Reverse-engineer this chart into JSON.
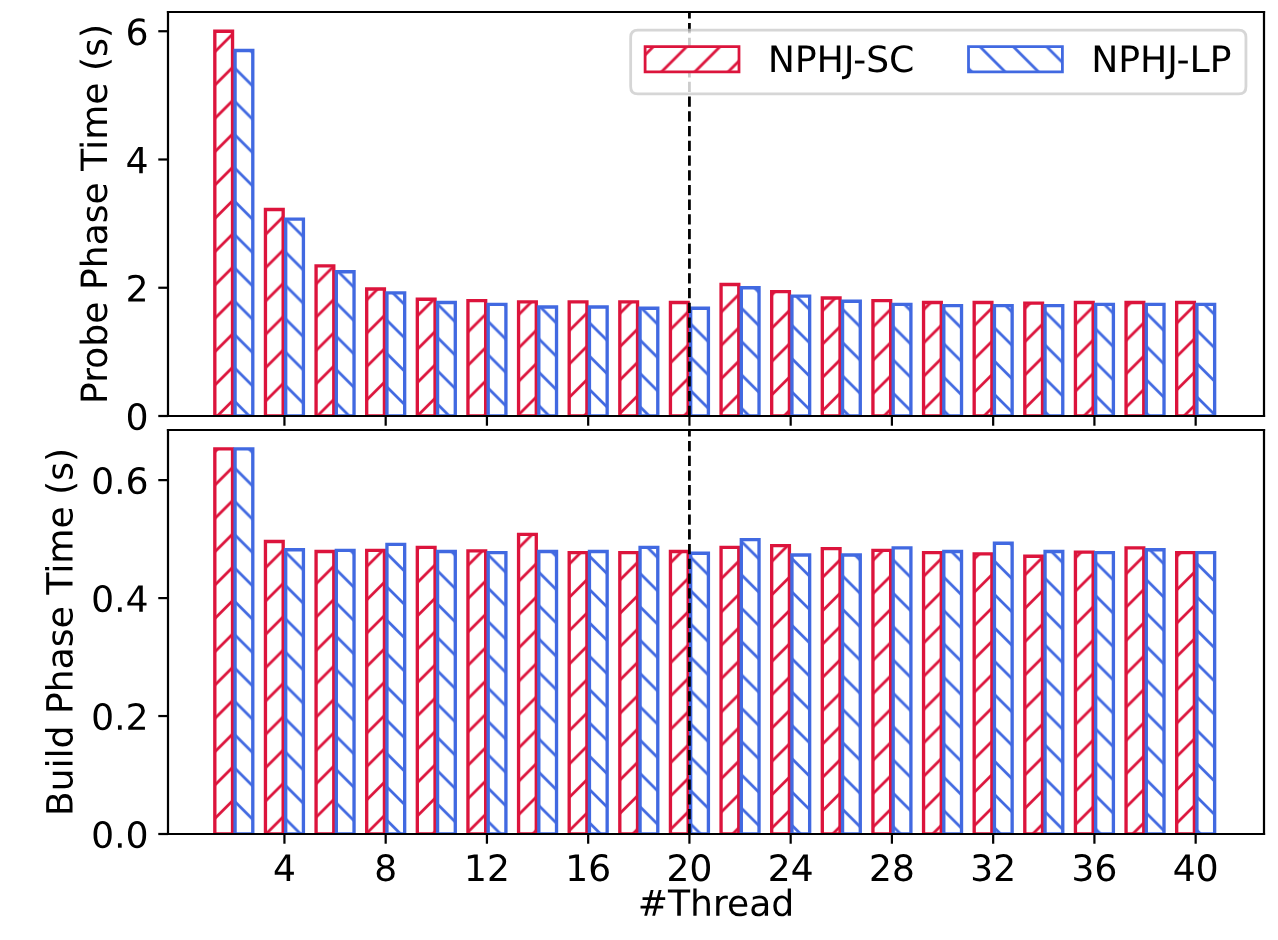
{
  "chart_data": [
    {
      "type": "bar",
      "ylabel": "Probe Phase Time (s)",
      "x": [
        2,
        4,
        6,
        8,
        10,
        12,
        14,
        16,
        18,
        20,
        22,
        24,
        26,
        28,
        30,
        32,
        34,
        36,
        38,
        40
      ],
      "series": [
        {
          "name": "NPHJ-SC",
          "color": "#dc143c",
          "values": [
            6.0,
            3.22,
            2.34,
            1.98,
            1.82,
            1.8,
            1.78,
            1.78,
            1.78,
            1.77,
            2.05,
            1.94,
            1.84,
            1.8,
            1.77,
            1.77,
            1.76,
            1.77,
            1.77,
            1.77
          ]
        },
        {
          "name": "NPHJ-LP",
          "color": "#4169e1",
          "values": [
            5.7,
            3.07,
            2.25,
            1.92,
            1.77,
            1.74,
            1.7,
            1.7,
            1.68,
            1.68,
            2.0,
            1.87,
            1.79,
            1.74,
            1.72,
            1.72,
            1.72,
            1.74,
            1.74,
            1.74
          ]
        }
      ],
      "xlim": [
        -0.6,
        42.7
      ],
      "xticks": [
        4,
        8,
        12,
        16,
        20,
        24,
        28,
        32,
        36,
        40
      ],
      "ylim": [
        0,
        6.3
      ],
      "yticks": [
        0,
        2,
        4,
        6
      ],
      "ref_lines": [
        {
          "axis": "x",
          "value": 20,
          "color": "#000000",
          "line_style": "dashed"
        }
      ],
      "legend": "top right",
      "grid": false,
      "tick_labels": "y"
    },
    {
      "type": "bar",
      "xlabel": "#Thread",
      "ylabel": "Build Phase Time (s)",
      "x": [
        2,
        4,
        6,
        8,
        10,
        12,
        14,
        16,
        18,
        20,
        22,
        24,
        26,
        28,
        30,
        32,
        34,
        36,
        38,
        40
      ],
      "series": [
        {
          "color": "#dc143c",
          "values": [
            0.653,
            0.496,
            0.479,
            0.481,
            0.486,
            0.48,
            0.508,
            0.477,
            0.477,
            0.479,
            0.486,
            0.489,
            0.484,
            0.481,
            0.477,
            0.475,
            0.471,
            0.478,
            0.485,
            0.477
          ]
        },
        {
          "color": "#4169e1",
          "values": [
            0.653,
            0.482,
            0.481,
            0.491,
            0.479,
            0.477,
            0.479,
            0.479,
            0.486,
            0.476,
            0.499,
            0.473,
            0.473,
            0.485,
            0.479,
            0.493,
            0.479,
            0.477,
            0.482,
            0.477
          ]
        }
      ],
      "xlim": [
        -0.6,
        42.7
      ],
      "xticks": [
        4,
        8,
        12,
        16,
        20,
        24,
        28,
        32,
        36,
        40
      ],
      "ylim": [
        0,
        0.685
      ],
      "yticks": [
        {
          "value": 0,
          "label": "0.0"
        },
        {
          "value": 0.2,
          "label": "0.2"
        },
        {
          "value": 0.4,
          "label": "0.4"
        },
        {
          "value": 0.6,
          "label": "0.6"
        }
      ],
      "ref_lines": [
        {
          "axis": "x",
          "value": 20,
          "color": "#000000",
          "line_style": "dashed"
        }
      ],
      "legend": false,
      "grid": false
    }
  ]
}
